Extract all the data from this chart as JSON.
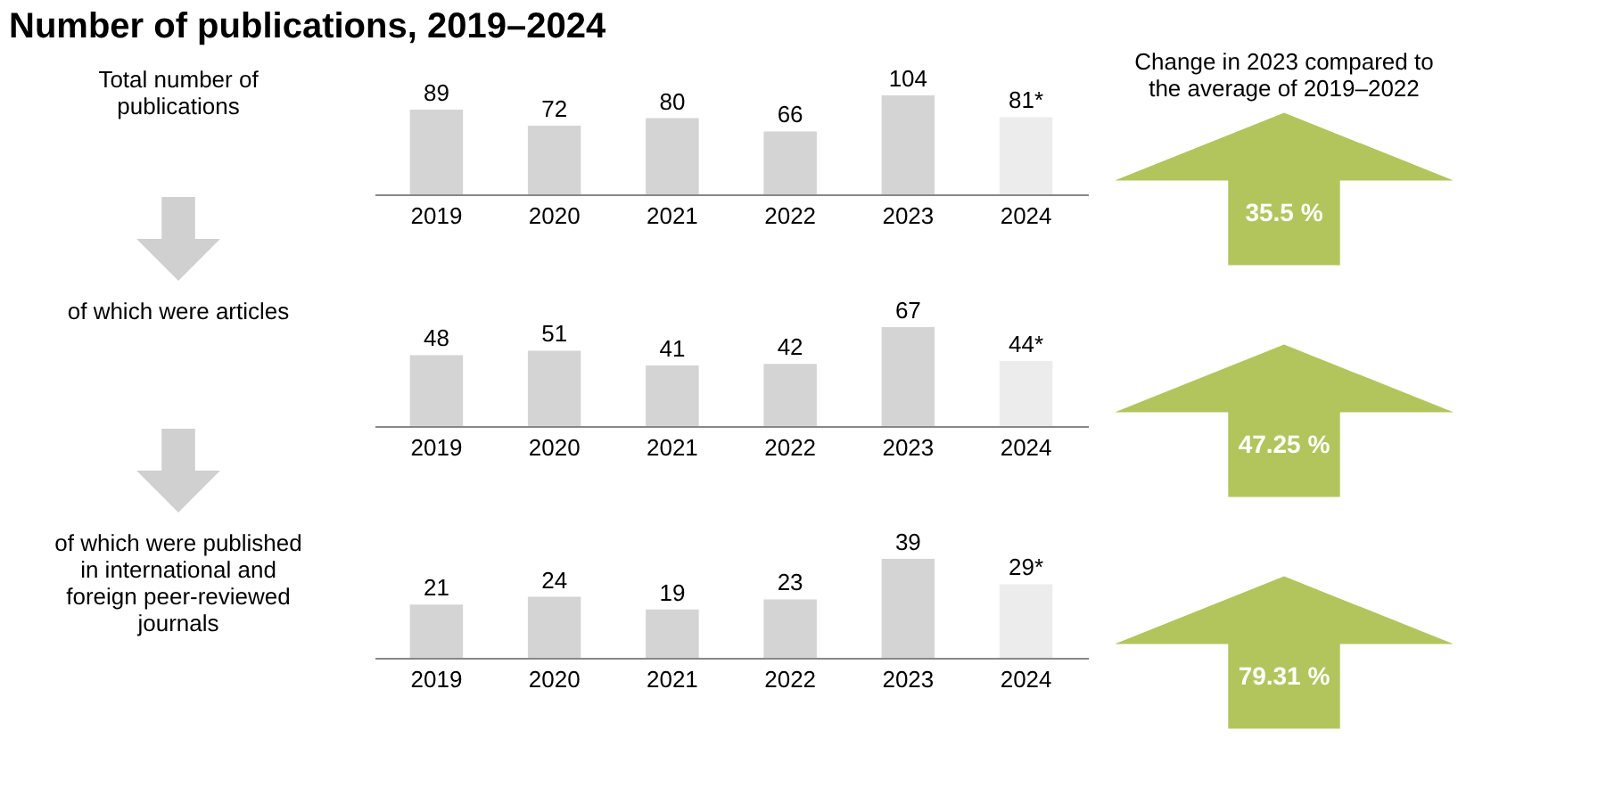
{
  "chart_data": [
    {
      "type": "bar",
      "title": "Number of publications, 2019–2024",
      "subtitle": "Total number of publications",
      "categories": [
        "2019",
        "2020",
        "2021",
        "2022",
        "2023",
        "2024"
      ],
      "values": [
        89,
        72,
        80,
        66,
        104,
        81
      ],
      "value_labels": [
        "89",
        "72",
        "80",
        "66",
        "104",
        "81*"
      ],
      "colors": [
        "#d4d4d4",
        "#d4d4d4",
        "#d4d4d4",
        "#d4d4d4",
        "#d4d4d4",
        "#ececec"
      ],
      "annotations": [
        "Change in 2023 compared to the average of 2019–2022",
        "35.5 %"
      ]
    },
    {
      "type": "bar",
      "subtitle": "of which were articles",
      "categories": [
        "2019",
        "2020",
        "2021",
        "2022",
        "2023",
        "2024"
      ],
      "values": [
        48,
        51,
        41,
        42,
        67,
        44
      ],
      "value_labels": [
        "48",
        "51",
        "41",
        "42",
        "67",
        "44*"
      ],
      "colors": [
        "#d4d4d4",
        "#d4d4d4",
        "#d4d4d4",
        "#d4d4d4",
        "#d4d4d4",
        "#ececec"
      ],
      "annotations": [
        "47.25 %"
      ]
    },
    {
      "type": "bar",
      "subtitle": "of which were published in international and foreign peer-reviewed journals",
      "categories": [
        "2019",
        "2020",
        "2021",
        "2022",
        "2023",
        "2024"
      ],
      "values": [
        21,
        24,
        19,
        23,
        39,
        29
      ],
      "value_labels": [
        "21",
        "24",
        "19",
        "23",
        "39",
        "29*"
      ],
      "colors": [
        "#d4d4d4",
        "#d4d4d4",
        "#d4d4d4",
        "#d4d4d4",
        "#d4d4d4",
        "#ececec"
      ],
      "annotations": [
        "79.31 %"
      ]
    }
  ]
}
